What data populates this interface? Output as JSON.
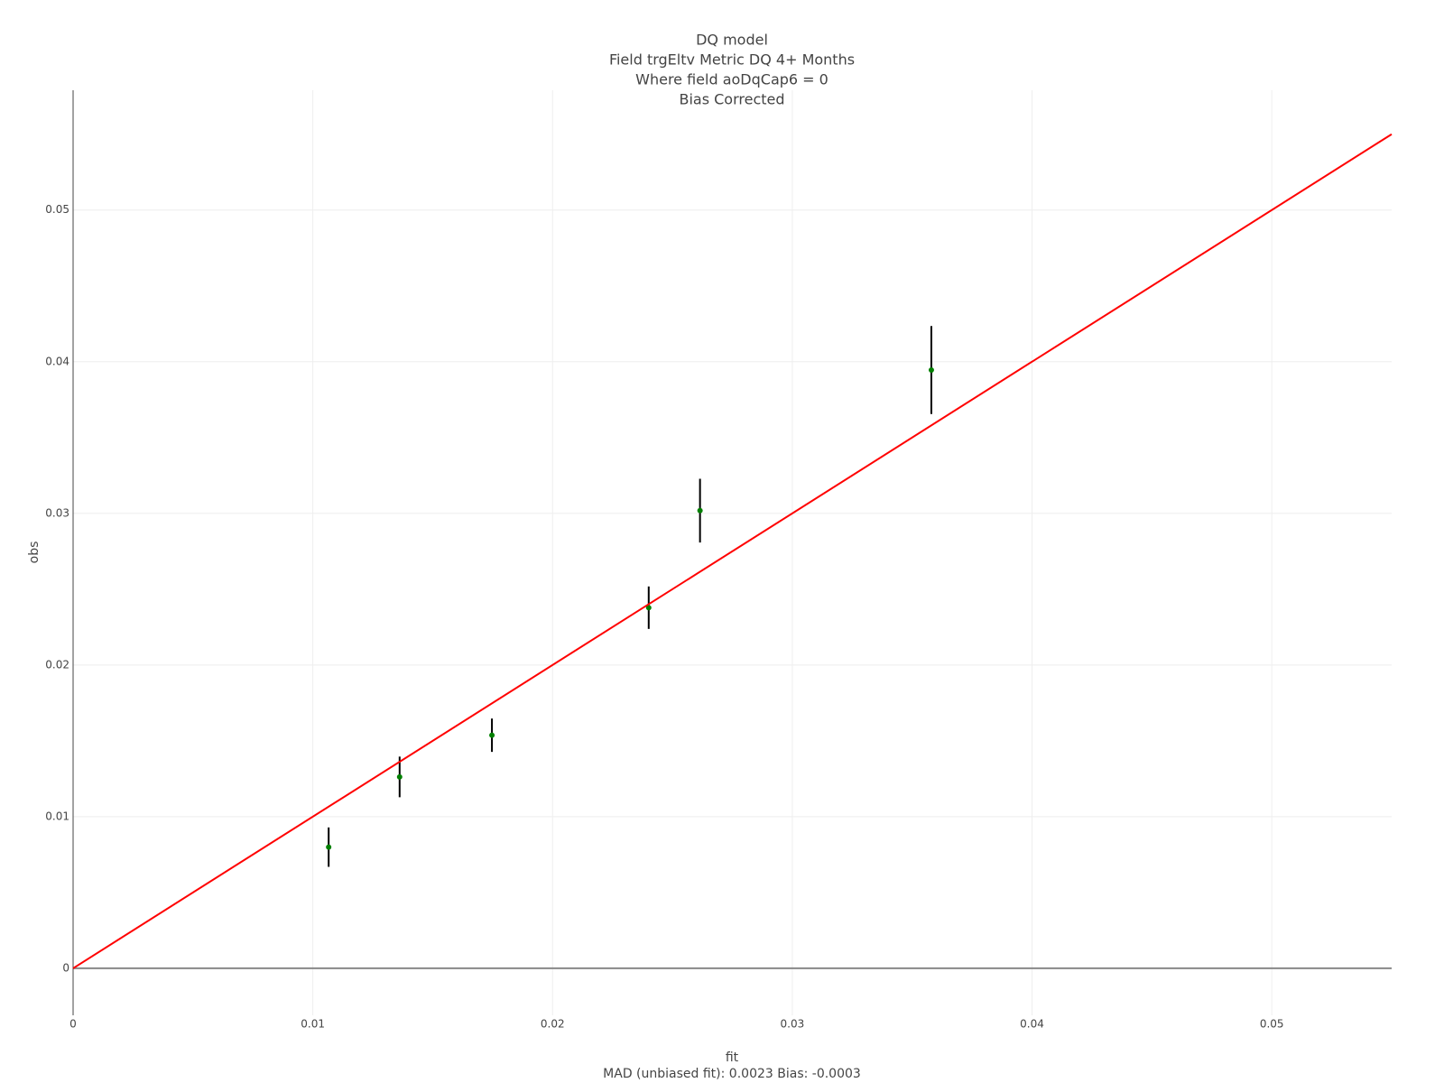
{
  "chart_data": {
    "type": "scatter",
    "title": [
      "DQ model",
      "Field trgEltv Metric DQ 4+ Months",
      "Where field aoDqCap6 = 0",
      "Bias Corrected"
    ],
    "xlabel": "fit",
    "xlabel_note": "MAD (unbiased fit): 0.0023 Bias: -0.0003",
    "ylabel": "obs",
    "xlim": [
      0,
      0.055
    ],
    "ylim": [
      -0.0031,
      0.0579
    ],
    "xticks": [
      0,
      0.01,
      0.02,
      0.03,
      0.04,
      0.05
    ],
    "yticks": [
      0,
      0.01,
      0.02,
      0.03,
      0.04,
      0.05
    ],
    "grid": true,
    "series": [
      {
        "type": "scatter",
        "color": "#008000",
        "error_color": "#000000",
        "x": [
          0.01066,
          0.01362,
          0.01747,
          0.02401,
          0.02615,
          0.0358
        ],
        "values": [
          0.00799,
          0.01262,
          0.01537,
          0.02378,
          0.03018,
          0.03945
        ],
        "errors": [
          0.0013,
          0.00134,
          0.0011,
          0.0014,
          0.0021,
          0.0029
        ]
      },
      {
        "type": "line",
        "color": "#ff0000",
        "x": [
          0,
          0.055
        ],
        "values": [
          0,
          0.055
        ]
      }
    ]
  }
}
